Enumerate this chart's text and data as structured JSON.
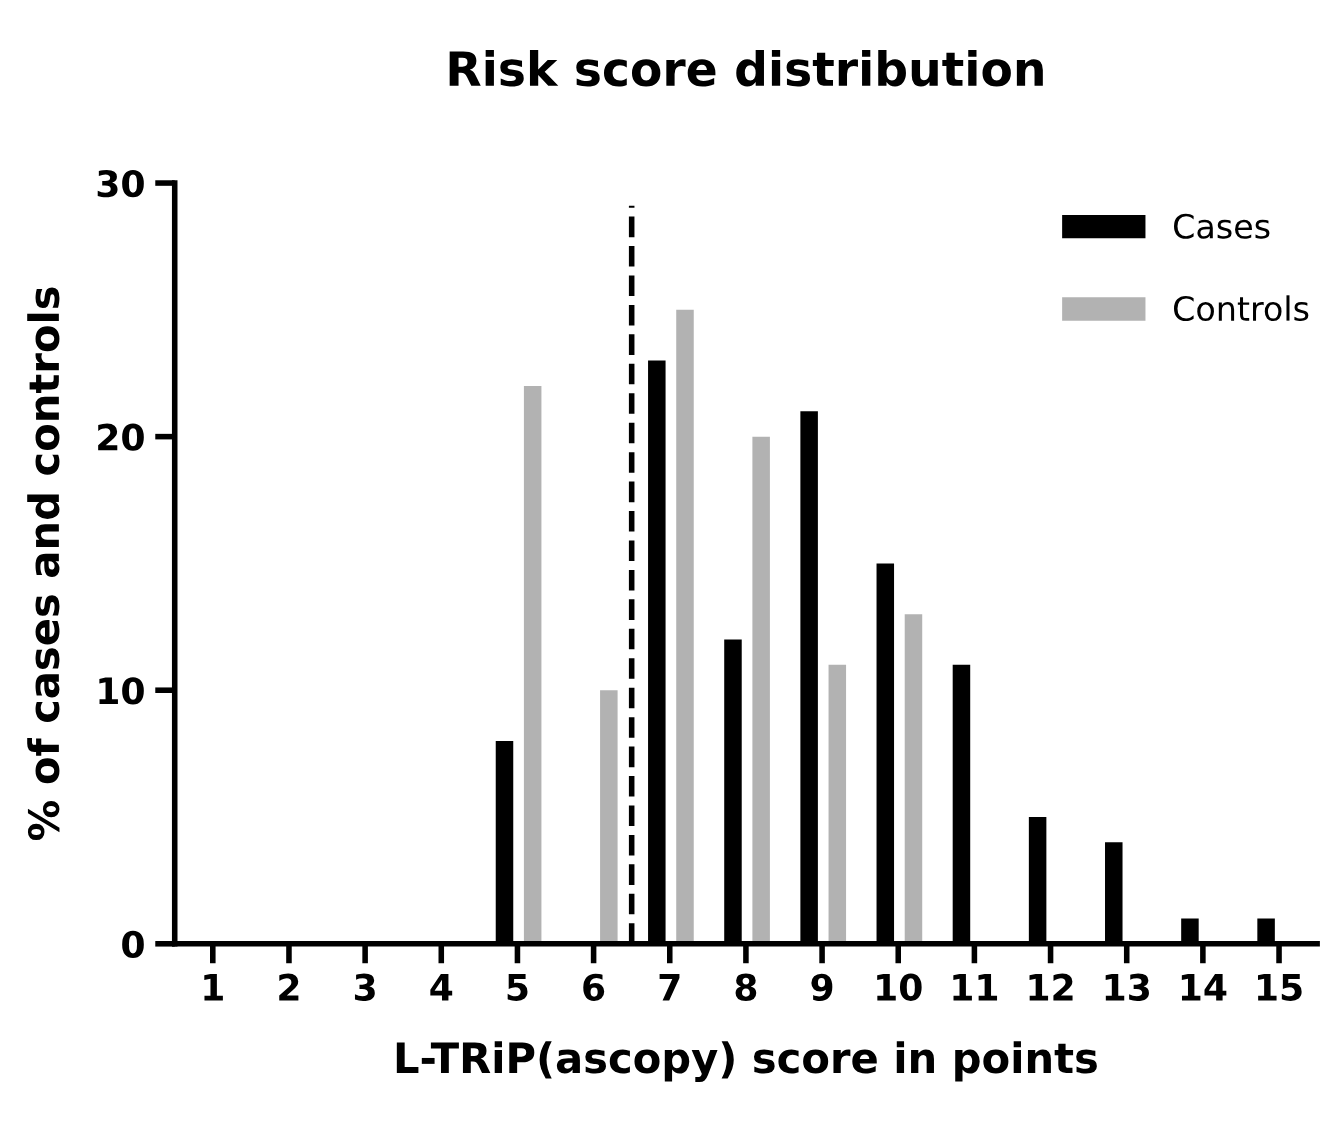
{
  "chart_data": {
    "type": "bar",
    "title": "Risk score distribution",
    "xlabel": "L-TRiP(ascopy) score in points",
    "ylabel": "% of cases and controls",
    "x": [
      1,
      2,
      3,
      4,
      5,
      6,
      7,
      8,
      9,
      10,
      11,
      12,
      13,
      14,
      15
    ],
    "series": [
      {
        "name": "Cases",
        "color": "#000000",
        "values": [
          0,
          0,
          0,
          0,
          8,
          0,
          23,
          12,
          21,
          15,
          11,
          5,
          4,
          1,
          1
        ]
      },
      {
        "name": "Controls",
        "color": "#b2b2b2",
        "values": [
          0,
          0,
          0,
          0,
          22,
          10,
          25,
          20,
          11,
          13,
          0,
          0,
          0,
          0,
          0
        ]
      }
    ],
    "xlim": [
      0.5,
      15.5
    ],
    "xticks": [
      1,
      2,
      3,
      4,
      5,
      6,
      7,
      8,
      9,
      10,
      11,
      12,
      13,
      14,
      15
    ],
    "ylim": [
      0,
      30
    ],
    "yticks": [
      0,
      10,
      20,
      30
    ],
    "ref_lines": [
      {
        "axis": "x",
        "value": 6.5,
        "color": "#000000",
        "line_style": "dashed"
      }
    ],
    "legend": "top right",
    "grid": false
  }
}
